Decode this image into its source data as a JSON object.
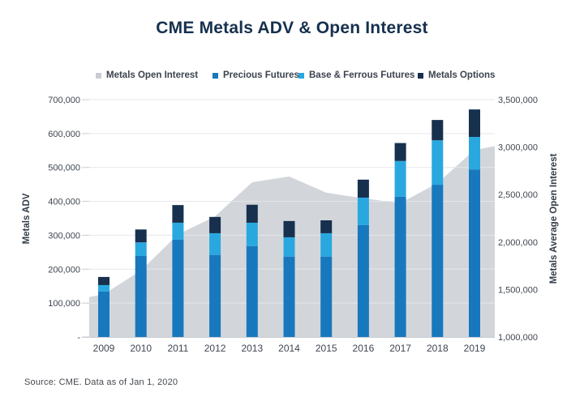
{
  "page": {
    "title": "CME Metals ADV & Open Interest",
    "source_note": "Source: CME. Data as of Jan 1, 2020"
  },
  "colors": {
    "title": "#16304e",
    "precious_futures": "#1878bd",
    "base_ferrous_futures": "#29a8e0",
    "metals_options": "#16304e",
    "open_interest_area": "#d2d6da",
    "gridline": "#e5e7e9",
    "axis_line": "#c8ccd0",
    "tick_text": "#3f4650",
    "axis_title_text": "#333d47",
    "background": "#ffffff"
  },
  "chart_data": {
    "type": "combo-stacked-bar-area",
    "title": "CME Metals ADV & Open Interest",
    "categories": [
      "2009",
      "2010",
      "2011",
      "2012",
      "2013",
      "2014",
      "2015",
      "2016",
      "2017",
      "2018",
      "2019"
    ],
    "series": [
      {
        "name": "Metals Open Interest",
        "type": "area",
        "axis": "right",
        "color": "#d2d6da",
        "values": [
          1450000,
          1700000,
          2080000,
          2270000,
          2630000,
          2690000,
          2520000,
          2460000,
          2410000,
          2620000,
          2970000
        ]
      },
      {
        "name": "Precious Futures",
        "type": "bar-stacked",
        "axis": "left",
        "color": "#1878bd",
        "values": [
          134000,
          239000,
          287000,
          242000,
          268000,
          237000,
          237000,
          330000,
          414000,
          449000,
          494000
        ]
      },
      {
        "name": "Base & Ferrous Futures",
        "type": "bar-stacked",
        "axis": "left",
        "color": "#29a8e0",
        "values": [
          19000,
          40000,
          50000,
          64000,
          69000,
          57000,
          69000,
          81000,
          105000,
          131000,
          96000
        ]
      },
      {
        "name": "Metals Options",
        "type": "bar-stacked",
        "axis": "left",
        "color": "#16304e",
        "values": [
          24000,
          38000,
          52000,
          48000,
          53000,
          48000,
          38000,
          53000,
          53000,
          60000,
          81000
        ]
      }
    ],
    "area_edge_extension": {
      "left_value": 1420000,
      "right_value": 3010000
    },
    "left_axis": {
      "label": "Metals ADV",
      "min": 0,
      "max": 700000,
      "step": 100000,
      "tick_labels": [
        "700,000",
        "600,000",
        "500,000",
        "400,000",
        "300,000",
        "200,000",
        "100,000",
        "-"
      ]
    },
    "right_axis": {
      "label": "Metals Average Open Interest",
      "min": 1000000,
      "max": 3500000,
      "step": 500000,
      "tick_labels": [
        "3,500,000",
        "3,000,000",
        "2,500,000",
        "2,000,000",
        "1,500,000",
        "1,000,000"
      ]
    },
    "x_axis": {
      "tick_labels": [
        "2009",
        "2010",
        "2011",
        "2012",
        "2013",
        "2014",
        "2015",
        "2016",
        "2017",
        "2018",
        "2019"
      ]
    },
    "legend": {
      "position": "top",
      "entries": [
        {
          "label": "Metals Open Interest",
          "color": "#c9cdd1"
        },
        {
          "label": "Precious Futures",
          "color": "#1878bd"
        },
        {
          "label": "Base & Ferrous Futures",
          "color": "#29a8e0"
        },
        {
          "label": "Metals Options",
          "color": "#16304e"
        }
      ]
    },
    "grid": true
  }
}
